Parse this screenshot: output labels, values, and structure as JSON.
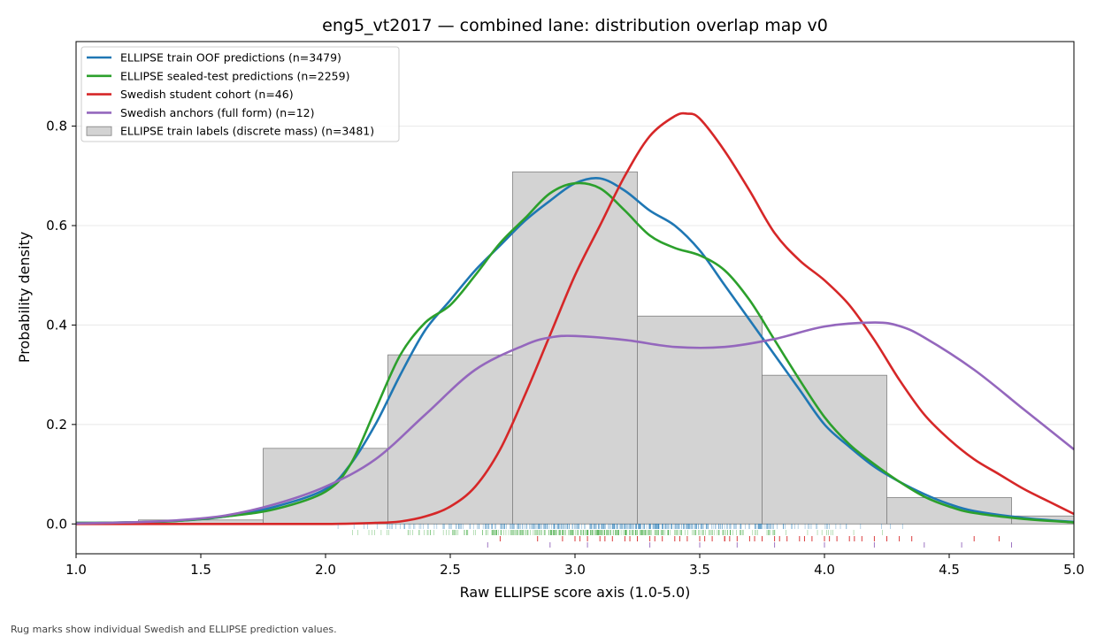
{
  "chart_data": {
    "type": "area",
    "title": "eng5_vt2017 — combined lane: distribution overlap map v0",
    "xlabel": "Raw ELLIPSE score axis (1.0-5.0)",
    "ylabel": "Probability density",
    "xlim": [
      1.0,
      5.0
    ],
    "ylim": [
      -0.06,
      0.97
    ],
    "x_ticks": [
      "1.0",
      "1.5",
      "2.0",
      "2.5",
      "3.0",
      "3.5",
      "4.0",
      "4.5",
      "5.0"
    ],
    "y_ticks": [
      "0.0",
      "0.2",
      "0.4",
      "0.6",
      "0.8"
    ],
    "grid": "horizontal",
    "legend_position": "top-left",
    "histogram": {
      "name": "ELLIPSE train labels (discrete mass) (n=3481)",
      "color": "#d3d3d3",
      "bins": [
        {
          "x0": 1.25,
          "x1": 1.75,
          "y": 0.008
        },
        {
          "x0": 1.75,
          "x1": 2.25,
          "y": 0.152
        },
        {
          "x0": 2.25,
          "x1": 2.75,
          "y": 0.34
        },
        {
          "x0": 2.75,
          "x1": 3.25,
          "y": 0.708
        },
        {
          "x0": 3.25,
          "x1": 3.75,
          "y": 0.418
        },
        {
          "x0": 3.75,
          "x1": 4.25,
          "y": 0.299
        },
        {
          "x0": 4.25,
          "x1": 4.75,
          "y": 0.053
        },
        {
          "x0": 4.75,
          "x1": 5.25,
          "y": 0.016
        }
      ]
    },
    "series": [
      {
        "name": "ELLIPSE train OOF predictions (n=3479)",
        "color": "#1f77b4",
        "x": [
          1.0,
          1.2,
          1.4,
          1.6,
          1.8,
          2.0,
          2.1,
          2.2,
          2.3,
          2.4,
          2.5,
          2.6,
          2.7,
          2.8,
          2.9,
          3.0,
          3.1,
          3.2,
          3.3,
          3.4,
          3.5,
          3.6,
          3.7,
          3.8,
          3.9,
          4.0,
          4.1,
          4.2,
          4.3,
          4.4,
          4.5,
          4.6,
          4.8,
          5.0
        ],
        "y": [
          0.002,
          0.003,
          0.006,
          0.015,
          0.035,
          0.07,
          0.12,
          0.2,
          0.3,
          0.39,
          0.45,
          0.51,
          0.56,
          0.61,
          0.65,
          0.685,
          0.695,
          0.67,
          0.63,
          0.6,
          0.55,
          0.48,
          0.41,
          0.34,
          0.27,
          0.2,
          0.155,
          0.115,
          0.085,
          0.06,
          0.04,
          0.026,
          0.012,
          0.004
        ]
      },
      {
        "name": "ELLIPSE sealed-test predictions (n=2259)",
        "color": "#2ca02c",
        "x": [
          1.0,
          1.2,
          1.4,
          1.6,
          1.8,
          2.0,
          2.1,
          2.2,
          2.3,
          2.4,
          2.5,
          2.6,
          2.7,
          2.8,
          2.9,
          3.0,
          3.1,
          3.2,
          3.3,
          3.4,
          3.5,
          3.6,
          3.7,
          3.8,
          3.9,
          4.0,
          4.1,
          4.2,
          4.3,
          4.4,
          4.5,
          4.6,
          4.8,
          5.0
        ],
        "y": [
          0.002,
          0.003,
          0.006,
          0.015,
          0.03,
          0.065,
          0.12,
          0.23,
          0.34,
          0.405,
          0.44,
          0.5,
          0.565,
          0.615,
          0.665,
          0.685,
          0.675,
          0.63,
          0.58,
          0.555,
          0.54,
          0.51,
          0.45,
          0.37,
          0.29,
          0.215,
          0.16,
          0.12,
          0.085,
          0.055,
          0.035,
          0.022,
          0.01,
          0.003
        ]
      },
      {
        "name": "Swedish student cohort (n=46)",
        "color": "#d62728",
        "x": [
          1.0,
          1.5,
          2.0,
          2.2,
          2.3,
          2.4,
          2.5,
          2.6,
          2.7,
          2.8,
          2.9,
          3.0,
          3.1,
          3.2,
          3.3,
          3.4,
          3.45,
          3.5,
          3.6,
          3.7,
          3.8,
          3.9,
          4.0,
          4.1,
          4.2,
          4.3,
          4.4,
          4.5,
          4.6,
          4.7,
          4.8,
          4.9,
          5.0
        ],
        "y": [
          0.0,
          0.0,
          0.0,
          0.002,
          0.005,
          0.015,
          0.035,
          0.075,
          0.15,
          0.26,
          0.38,
          0.5,
          0.6,
          0.7,
          0.78,
          0.82,
          0.825,
          0.815,
          0.75,
          0.67,
          0.585,
          0.53,
          0.49,
          0.44,
          0.37,
          0.29,
          0.22,
          0.17,
          0.13,
          0.1,
          0.07,
          0.045,
          0.02
        ]
      },
      {
        "name": "Swedish anchors (full form) (n=12)",
        "color": "#9467bd",
        "x": [
          1.0,
          1.2,
          1.4,
          1.6,
          1.8,
          2.0,
          2.2,
          2.4,
          2.6,
          2.8,
          2.9,
          3.0,
          3.2,
          3.4,
          3.6,
          3.8,
          4.0,
          4.2,
          4.3,
          4.4,
          4.6,
          4.8,
          5.0
        ],
        "y": [
          0.001,
          0.003,
          0.007,
          0.017,
          0.04,
          0.075,
          0.13,
          0.22,
          0.31,
          0.36,
          0.375,
          0.378,
          0.37,
          0.356,
          0.356,
          0.372,
          0.397,
          0.405,
          0.398,
          0.375,
          0.31,
          0.23,
          0.15
        ]
      }
    ],
    "rugs": [
      {
        "name": "ELLIPSE train OOF predictions (n=3479)",
        "color": "#1f77b4",
        "row": 0,
        "range": [
          2.05,
          4.55
        ],
        "count": 420,
        "center": 3.15
      },
      {
        "name": "ELLIPSE sealed-test predictions (n=2259)",
        "color": "#2ca02c",
        "row": 1,
        "range": [
          1.95,
          4.45
        ],
        "count": 360,
        "center": 3.1
      },
      {
        "name": "Swedish student cohort (n=46)",
        "color": "#d62728",
        "row": 2,
        "values": [
          2.7,
          2.85,
          2.95,
          3.0,
          3.05,
          3.1,
          3.15,
          3.2,
          3.25,
          3.3,
          3.35,
          3.4,
          3.45,
          3.5,
          3.55,
          3.6,
          3.6,
          3.65,
          3.7,
          3.75,
          3.8,
          3.85,
          3.9,
          3.95,
          4.0,
          4.05,
          4.1,
          4.15,
          4.2,
          4.25,
          4.3,
          4.35,
          4.6,
          4.7,
          3.02,
          3.12,
          3.22,
          3.32,
          3.42,
          3.52,
          3.62,
          3.72,
          3.82,
          3.92,
          4.02,
          4.12
        ]
      },
      {
        "name": "Swedish anchors (full form) (n=12)",
        "color": "#9467bd",
        "row": 3,
        "values": [
          2.65,
          2.9,
          3.05,
          3.3,
          3.5,
          3.65,
          3.8,
          4.0,
          4.2,
          4.4,
          4.55,
          4.75
        ]
      }
    ]
  },
  "caption": "Rug marks show individual Swedish and ELLIPSE prediction values."
}
